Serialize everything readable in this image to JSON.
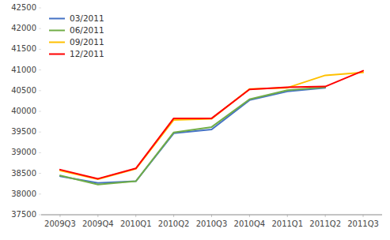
{
  "chart_data": {
    "type": "line",
    "categories": [
      "2009Q3",
      "2009Q4",
      "2010Q1",
      "2010Q2",
      "2010Q3",
      "2010Q4",
      "2011Q1",
      "2011Q2",
      "2011Q3"
    ],
    "series": [
      {
        "name": "03/2011",
        "color": "#4472c4",
        "values": [
          38430,
          38270,
          38310,
          39470,
          39560,
          40270,
          40480,
          40570,
          null
        ]
      },
      {
        "name": "06/2011",
        "color": "#70ad47",
        "values": [
          38450,
          38230,
          38310,
          39490,
          39620,
          40290,
          40510,
          40580,
          null
        ]
      },
      {
        "name": "09/2011",
        "color": "#ffc000",
        "values": [
          38570,
          38360,
          38610,
          39790,
          39820,
          40540,
          40570,
          40870,
          40940
        ]
      },
      {
        "name": "12/2011",
        "color": "#ff0000",
        "values": [
          38590,
          38370,
          38620,
          39830,
          39830,
          40530,
          40580,
          40600,
          40980
        ]
      }
    ],
    "ylim": [
      37500,
      42500
    ],
    "yticks": [
      37500,
      38000,
      38500,
      39000,
      39500,
      40000,
      40500,
      41000,
      41500,
      42000,
      42500
    ],
    "grid": false,
    "legend": "upper left"
  }
}
